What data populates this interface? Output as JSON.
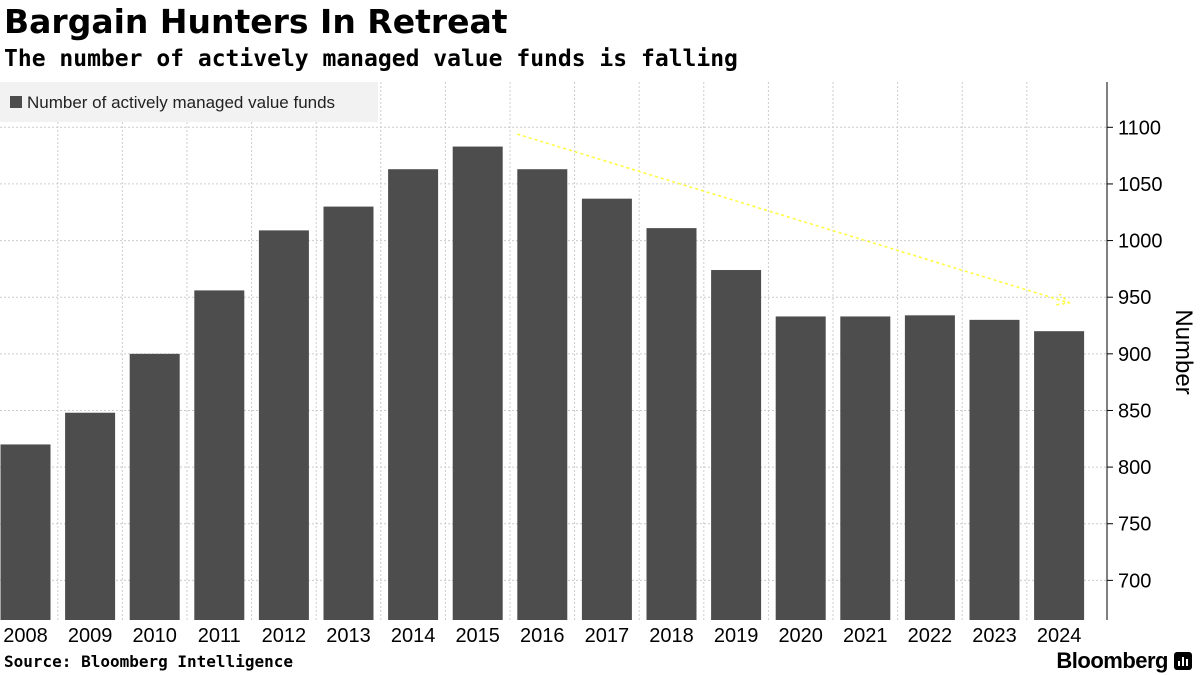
{
  "title": "Bargain Hunters In Retreat",
  "subtitle": "The number of actively managed value funds is falling",
  "source": "Source: Bloomberg Intelligence",
  "brand": "Bloomberg",
  "colors": {
    "bar": "#4d4d4d",
    "grid": "#cccccc",
    "trend_arrow": "#ffff44",
    "legend_bg": "#f2f2f2"
  },
  "chart_data": {
    "type": "bar",
    "title": "Bargain Hunters In Retreat",
    "subtitle": "The number of actively managed value funds is falling",
    "categories": [
      "2008",
      "2009",
      "2010",
      "2011",
      "2012",
      "2013",
      "2014",
      "2015",
      "2016",
      "2017",
      "2018",
      "2019",
      "2020",
      "2021",
      "2022",
      "2023",
      "2024"
    ],
    "series": [
      {
        "name": "Number of actively managed value funds",
        "values": [
          820,
          848,
          900,
          956,
          1009,
          1030,
          1063,
          1083,
          1063,
          1037,
          1011,
          974,
          933,
          933,
          934,
          930,
          920
        ]
      }
    ],
    "xlabel": "",
    "ylabel": "Number",
    "ylim": [
      665,
      1140
    ],
    "yticks": [
      700,
      750,
      800,
      850,
      900,
      950,
      1000,
      1050,
      1100
    ],
    "y_axis_side": "right",
    "grid": true,
    "legend": "top-left",
    "annotation": {
      "type": "trend-arrow",
      "description": "dashed yellow arrow pointing down-right",
      "from": {
        "category": "2016",
        "value": 1094
      },
      "to": {
        "category": "2024",
        "value": 945
      }
    }
  }
}
